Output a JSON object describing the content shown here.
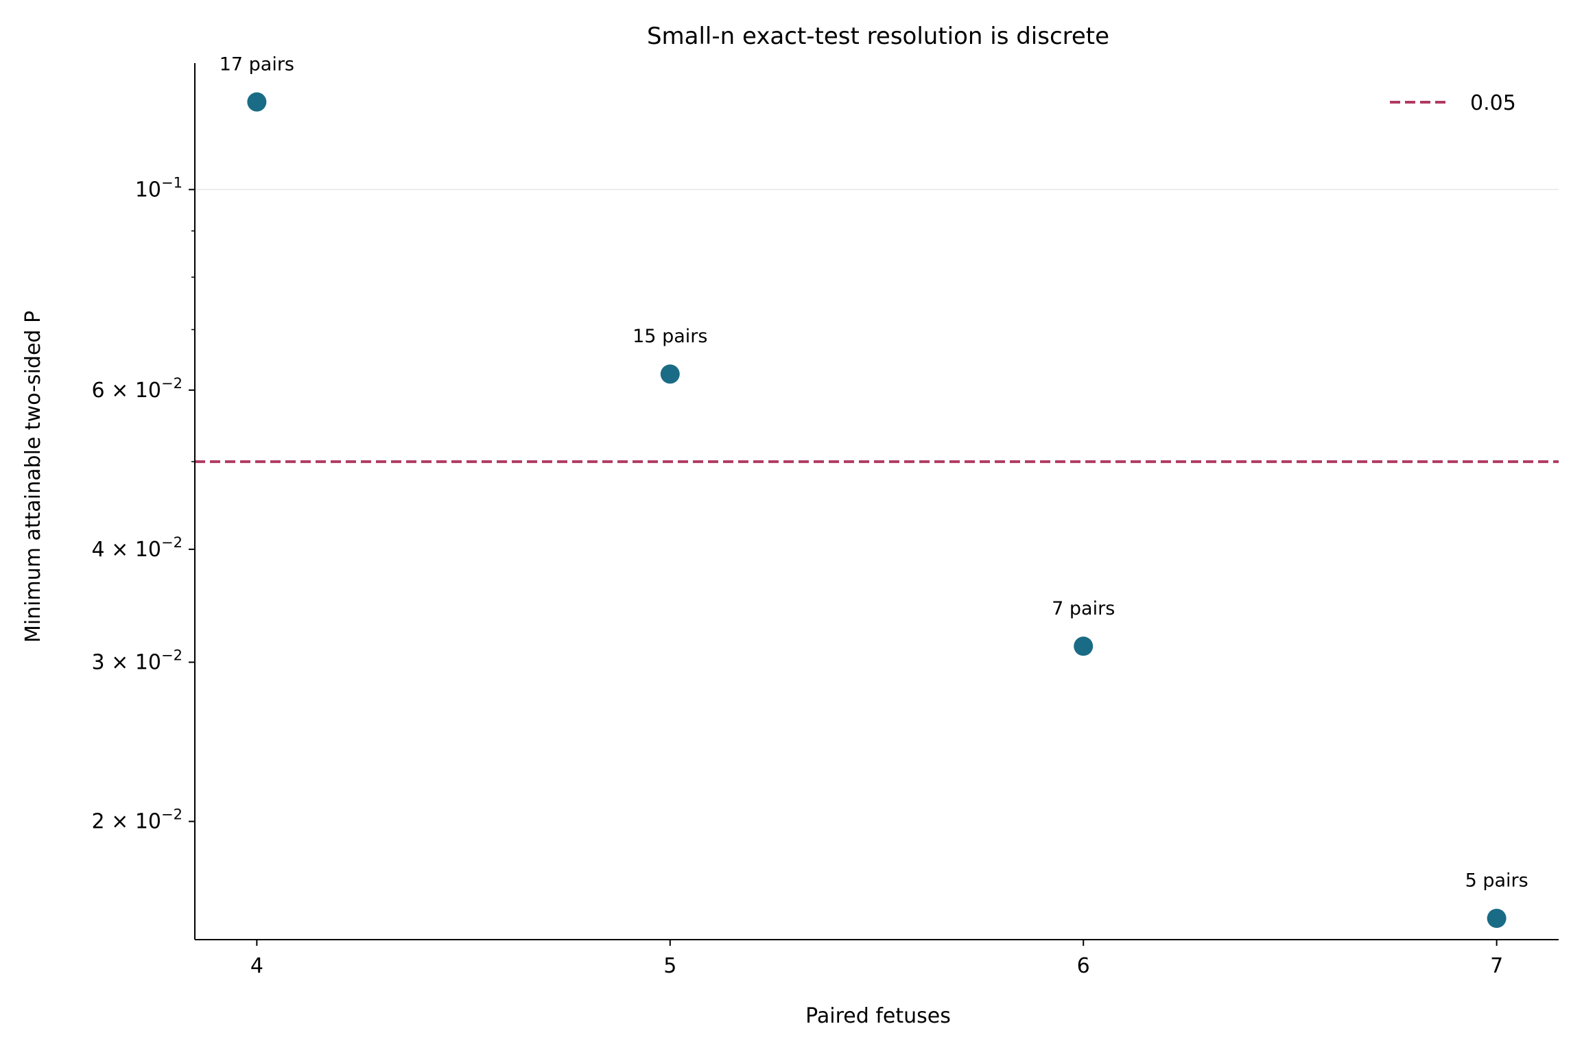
{
  "chart_data": {
    "type": "scatter",
    "title": "Small-n exact-test resolution is discrete",
    "xlabel": "Paired fetuses",
    "ylabel": "Minimum attainable two-sided P",
    "y_scale": "log",
    "x_ticks": [
      4,
      5,
      6,
      7
    ],
    "xlim": [
      3.85,
      7.15
    ],
    "ylim": [
      0.0148,
      0.138
    ],
    "y_ticks": [
      {
        "value": 0.1,
        "base": "10",
        "exp": "−1"
      },
      {
        "value": 0.06,
        "base": "6 × 10",
        "exp": "−2"
      },
      {
        "value": 0.04,
        "base": "4 × 10",
        "exp": "−2"
      },
      {
        "value": 0.03,
        "base": "3 × 10",
        "exp": "−2"
      },
      {
        "value": 0.02,
        "base": "2 × 10",
        "exp": "−2"
      }
    ],
    "y_minor_ticks": [
      0.09,
      0.08,
      0.07,
      0.05
    ],
    "points": [
      {
        "x": 4,
        "y": 0.125,
        "label": "17 pairs"
      },
      {
        "x": 5,
        "y": 0.0625,
        "label": "15 pairs"
      },
      {
        "x": 6,
        "y": 0.03125,
        "label": "7 pairs"
      },
      {
        "x": 7,
        "y": 0.015625,
        "label": "5 pairs"
      }
    ],
    "reference_line": {
      "y": 0.05,
      "label": "0.05",
      "style": "dashed"
    },
    "grid": "y-major only",
    "legend": "top-right",
    "colors": {
      "point": "#1a6b85",
      "reference_line": "#b03a62",
      "grid": "#e6e6e6"
    }
  }
}
